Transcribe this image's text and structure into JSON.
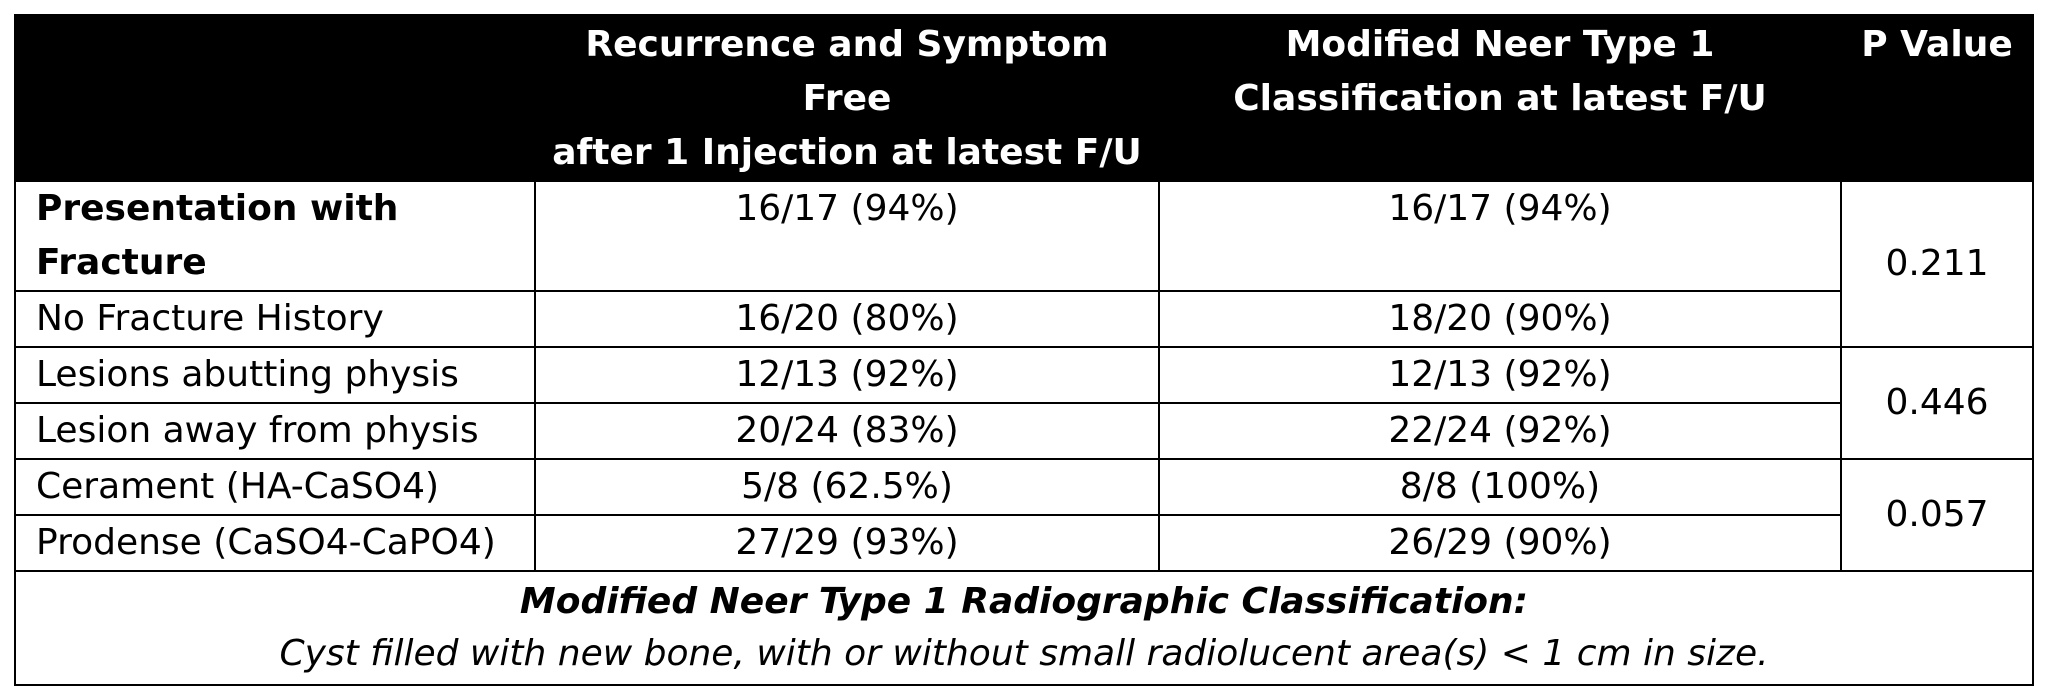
{
  "table": {
    "headers": [
      {
        "lines": []
      },
      {
        "lines": [
          "Recurrence and Symptom Free",
          "after 1 Injection at latest F/U"
        ]
      },
      {
        "lines": [
          "Modified Neer Type 1",
          "Classification at latest F/U"
        ]
      },
      {
        "lines": [
          "P Value"
        ]
      }
    ],
    "rows": [
      {
        "label": "Presentation with Fracture",
        "recurrence": "16/17 (94%)",
        "neer": "16/17 (94%)"
      },
      {
        "label": "No Fracture History",
        "recurrence": "16/20 (80%)",
        "neer": "18/20 (90%)"
      },
      {
        "label": "Lesions abutting physis",
        "recurrence": "12/13 (92%)",
        "neer": "12/13 (92%)"
      },
      {
        "label": "Lesion away from physis",
        "recurrence": "20/24 (83%)",
        "neer": "22/24 (92%)"
      },
      {
        "label": "Cerament (HA-CaSO4)",
        "recurrence": "5/8 (62.5%)",
        "neer": "8/8 (100%)"
      },
      {
        "label": "Prodense (CaSO4-CaPO4)",
        "recurrence": "27/29 (93%)",
        "neer": "26/29 (90%)"
      }
    ],
    "p_values": [
      "0.211",
      "0.446",
      "0.057"
    ]
  },
  "footnote": {
    "title": "Modified Neer Type 1 Radiographic Classification:",
    "text": "Cyst filled with new bone, with or without small radiolucent area(s) < 1 cm in size."
  }
}
